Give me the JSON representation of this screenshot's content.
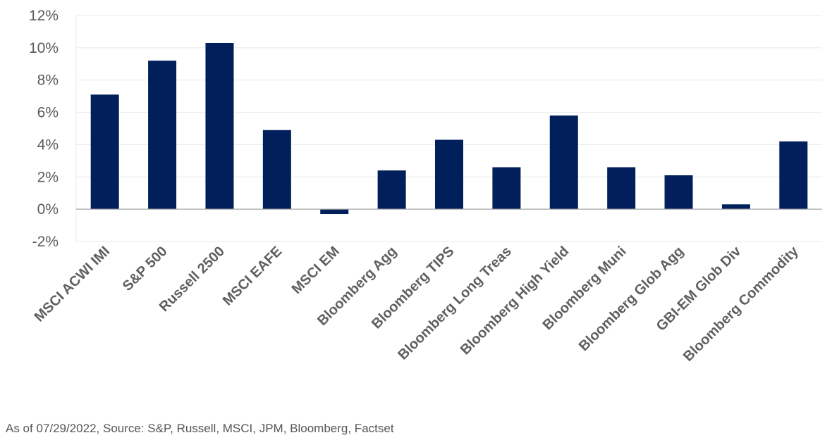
{
  "chart_data": {
    "type": "bar",
    "title": "",
    "xlabel": "",
    "ylabel": "",
    "categories": [
      "MSCI ACWI IMI",
      "S&P 500",
      "Russell 2500",
      "MSCI EAFE",
      "MSCI EM",
      "Bloomberg Agg",
      "Bloomberg TIPS",
      "Bloomberg Long Treas",
      "Bloomberg High Yield",
      "Bloomberg Muni",
      "Bloomberg Glob Agg",
      "GBI-EM Glob Div",
      "Bloomberg Commodity"
    ],
    "values": [
      7.1,
      9.2,
      10.3,
      4.9,
      -0.3,
      2.4,
      4.3,
      2.6,
      5.8,
      2.6,
      2.1,
      0.3,
      4.2
    ],
    "ylim": [
      -2,
      12
    ],
    "yticks": [
      -2,
      0,
      2,
      4,
      6,
      8,
      10,
      12
    ],
    "ytick_format": "%",
    "grid": true,
    "bar_color": "#001f5b",
    "gridline_color": "#e9e9e9",
    "zero_line_color": "#a6a6a6"
  },
  "footer": {
    "source": "As of 07/29/2022, Source: S&P, Russell, MSCI, JPM, Bloomberg, Factset"
  }
}
